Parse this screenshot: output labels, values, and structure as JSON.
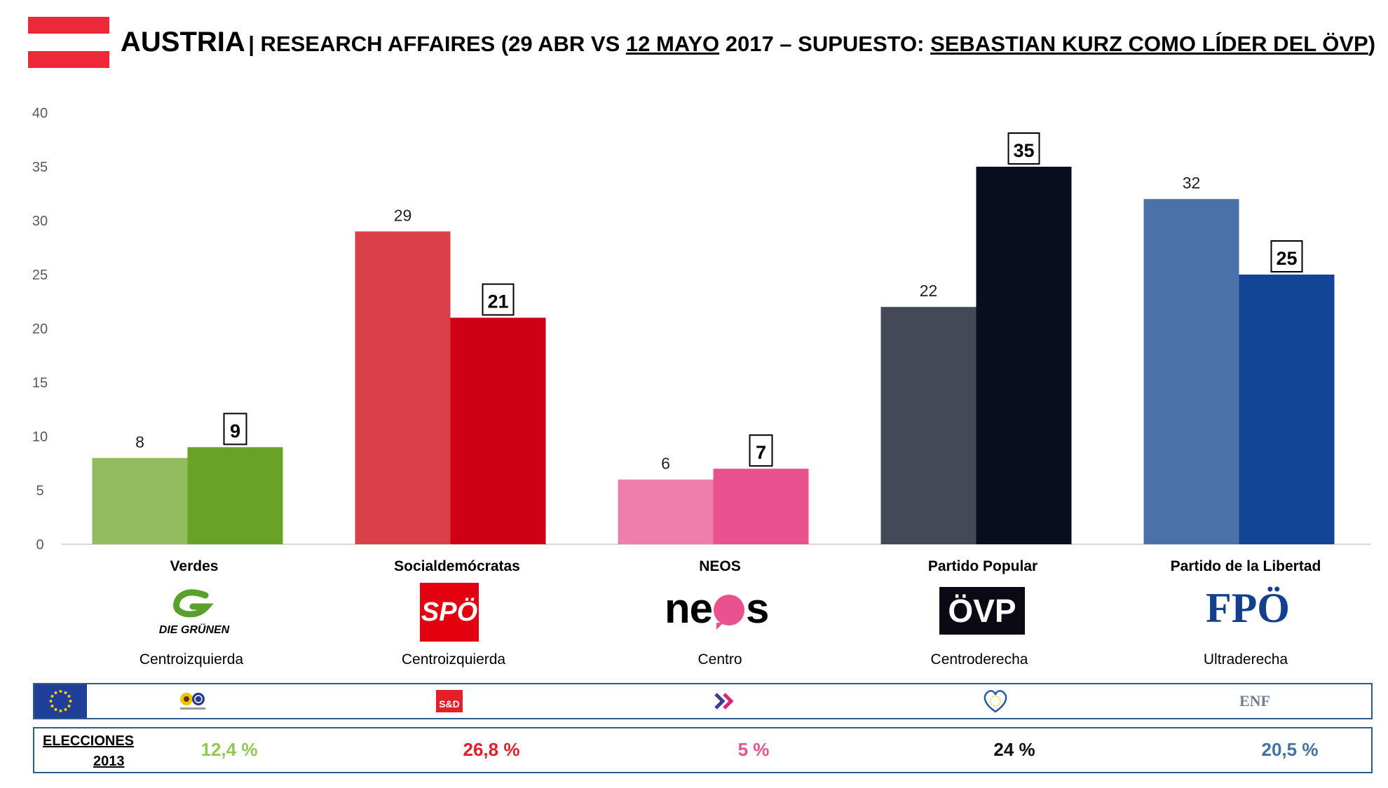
{
  "header": {
    "country": "AUSTRIA",
    "subtitle_prefix": "| RESEARCH AFFAIRES (29 ABR VS ",
    "subtitle_underlined_date": "12 MAYO",
    "subtitle_middle": " 2017 – SUPUESTO: ",
    "subtitle_underlined_scenario": "SEBASTIAN KURZ COMO LÍDER DEL ÖVP",
    "subtitle_suffix": ")",
    "flag_colors": [
      "#ed2939",
      "#ffffff",
      "#ed2939"
    ]
  },
  "chart_data": {
    "type": "bar",
    "categories": [
      "Verdes",
      "Socialdemócratas",
      "NEOS",
      "Partido Popular",
      "Partido de la Libertad"
    ],
    "series": [
      {
        "values": [
          8,
          29,
          6,
          22,
          32
        ],
        "colors": [
          "#93bb5f",
          "#d9404a",
          "#ee7fad",
          "#434957",
          "#4a72a8"
        ],
        "label_style": "plain"
      },
      {
        "values": [
          9,
          21,
          7,
          35,
          25
        ],
        "colors": [
          "#68a226",
          "#cf0013",
          "#e9528f",
          "#090d1f",
          "#124595"
        ],
        "label_style": "boxed"
      }
    ],
    "y_ticks": [
      0,
      5,
      10,
      15,
      20,
      25,
      30,
      35,
      40
    ],
    "ylim": [
      0,
      40
    ],
    "grid": false,
    "legend": "none"
  },
  "parties": [
    {
      "name": "Verdes",
      "ideology": "Centroizquierda",
      "logo_text": "DIE GRÜNEN",
      "eu_group_icon": "greens-efa-icon",
      "result_2013": "12,4 %",
      "result_color": "#92c953"
    },
    {
      "name": "Socialdemócratas",
      "ideology": "Centroizquierda",
      "logo_text": "SPÖ",
      "eu_group_icon": "s-and-d-icon",
      "eu_group_text": "S&D",
      "result_2013": "26,8 %",
      "result_color": "#e3202a"
    },
    {
      "name": "NEOS",
      "ideology": "Centro",
      "logo_text_a": "ne",
      "logo_text_b": "s",
      "eu_group_icon": "alde-icon",
      "result_2013": "5 %",
      "result_color": "#e9528f"
    },
    {
      "name": "Partido Popular",
      "ideology": "Centroderecha",
      "logo_text": "ÖVP",
      "eu_group_icon": "epp-icon",
      "result_2013": "24 %",
      "result_color": "#111111"
    },
    {
      "name": "Partido de la Libertad",
      "ideology": "Ultraderecha",
      "logo_text": "FPÖ",
      "eu_group_icon": "enf-icon",
      "eu_group_text": "ENF",
      "result_2013": "20,5 %",
      "result_color": "#3f74a6"
    }
  ],
  "elections": {
    "label_line1": "ELECCIONES",
    "label_line2": "2013"
  }
}
